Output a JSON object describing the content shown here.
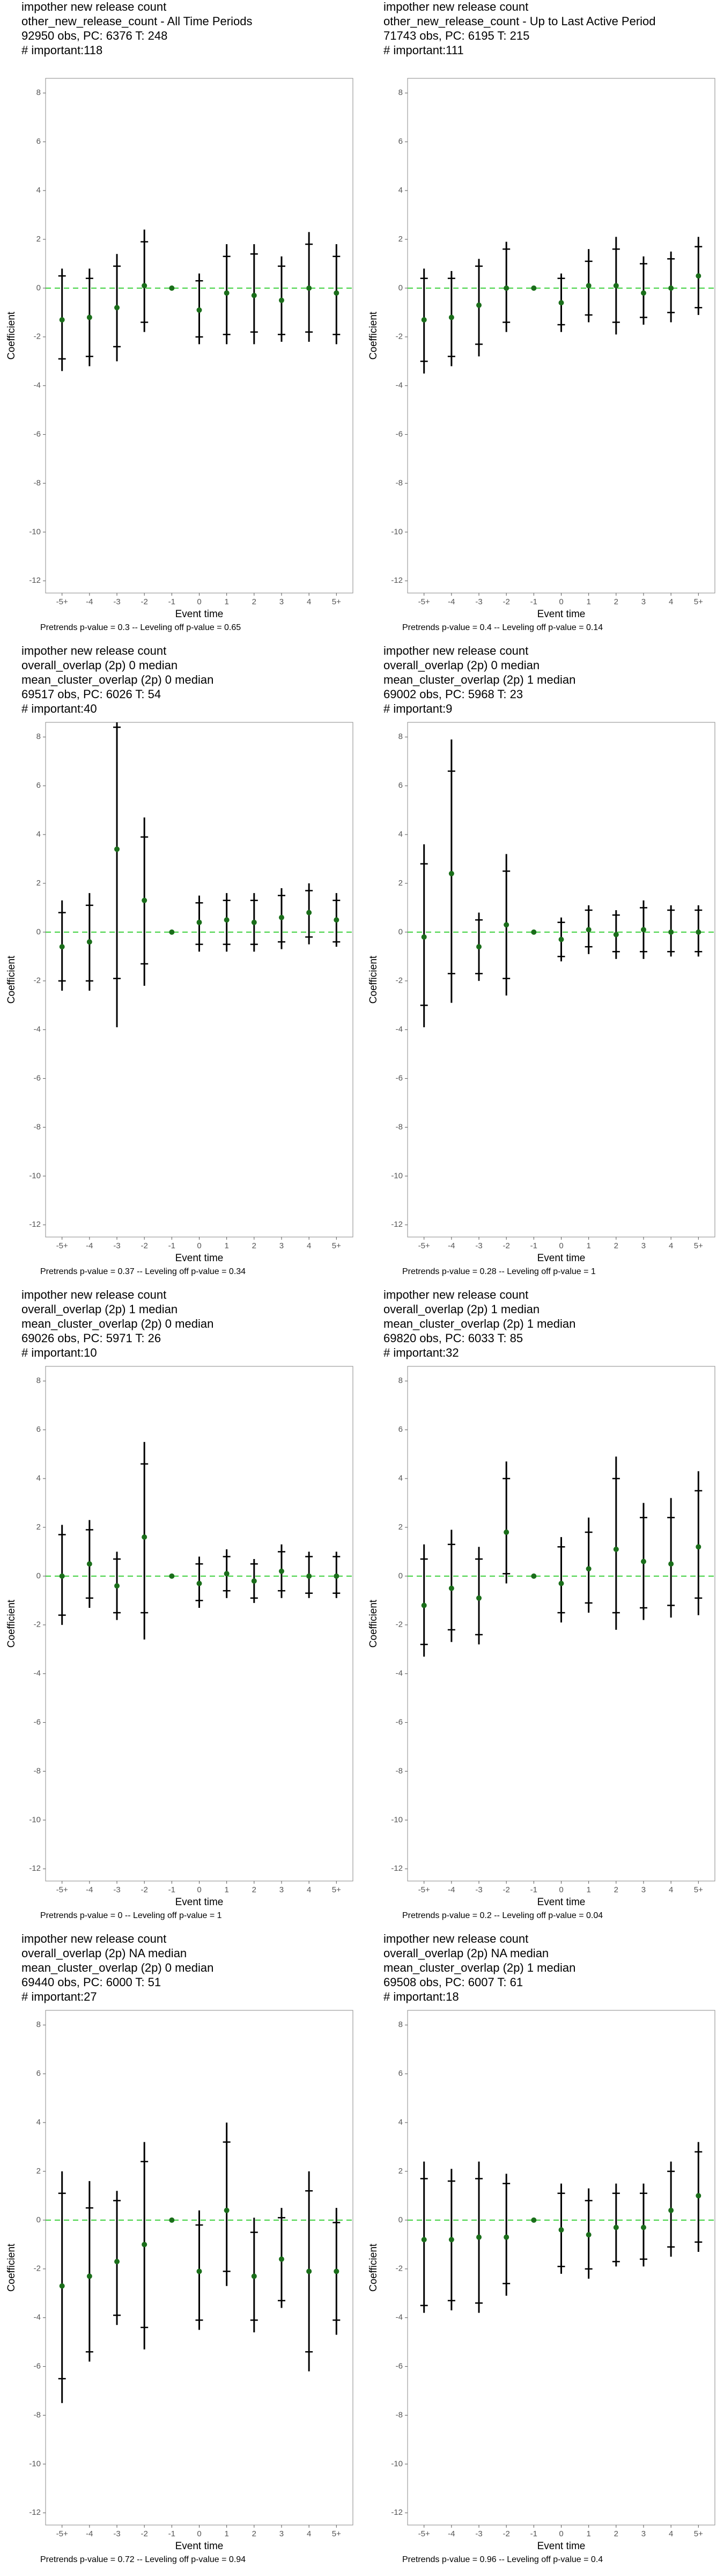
{
  "chart_data": [
    {
      "type": "errorbar",
      "title_lines": [
        " impother new release count",
        "other_new_release_count - All Time Periods",
        "92950 obs, PC: 6376 T: 248",
        "# important:118"
      ],
      "x_label": "Event time",
      "y_label": "Coefficient",
      "footer": "Pretrends p-value = 0.3 -- Leveling off p-value = 0.65",
      "categories": [
        "-5+",
        "-4",
        "-3",
        "-2",
        "-1",
        "0",
        "1",
        "2",
        "3",
        "4",
        "5+"
      ],
      "values": [
        -1.3,
        -1.2,
        -0.8,
        0.1,
        0,
        -0.9,
        -0.2,
        -0.3,
        -0.5,
        0.0,
        -0.2
      ],
      "outer_low": [
        -3.4,
        -3.2,
        -3.0,
        -1.8,
        null,
        -2.3,
        -2.3,
        -2.3,
        -2.2,
        -2.2,
        -2.3
      ],
      "outer_high": [
        0.8,
        0.8,
        1.4,
        2.4,
        null,
        0.6,
        1.8,
        1.8,
        1.3,
        2.3,
        1.8
      ],
      "inner_low": [
        -2.9,
        -2.8,
        -2.4,
        -1.4,
        null,
        -2.0,
        -1.9,
        -1.8,
        -1.9,
        -1.8,
        -1.9
      ],
      "inner_high": [
        0.5,
        0.4,
        0.9,
        1.9,
        null,
        0.3,
        1.3,
        1.4,
        0.9,
        1.8,
        1.3
      ],
      "ylim": [
        -12.5,
        8.6
      ],
      "yticks": [
        -12,
        -10,
        -8,
        -6,
        -4,
        -2,
        0,
        2,
        4,
        6,
        8
      ],
      "color": "#1a6e1a",
      "zero_line_color": "#3fd13f"
    },
    {
      "type": "errorbar",
      "title_lines": [
        " impother new release count",
        "other_new_release_count - Up to Last Active Period",
        "71743 obs, PC: 6195 T: 215",
        "# important:111"
      ],
      "x_label": "Event time",
      "y_label": "Coefficient",
      "footer": "Pretrends p-value = 0.4 -- Leveling off p-value = 0.14",
      "categories": [
        "-5+",
        "-4",
        "-3",
        "-2",
        "-1",
        "0",
        "1",
        "2",
        "3",
        "4",
        "5+"
      ],
      "values": [
        -1.3,
        -1.2,
        -0.7,
        0.0,
        0,
        -0.6,
        0.1,
        0.1,
        -0.2,
        0.0,
        0.5
      ],
      "outer_low": [
        -3.5,
        -3.2,
        -2.8,
        -1.8,
        null,
        -1.8,
        -1.4,
        -1.9,
        -1.5,
        -1.4,
        -1.1
      ],
      "outer_high": [
        0.8,
        0.7,
        1.2,
        1.9,
        null,
        0.6,
        1.6,
        2.1,
        1.3,
        1.5,
        2.1
      ],
      "inner_low": [
        -3.0,
        -2.8,
        -2.3,
        -1.4,
        null,
        -1.5,
        -1.1,
        -1.4,
        -1.2,
        -1.0,
        -0.8
      ],
      "inner_high": [
        0.4,
        0.4,
        0.9,
        1.6,
        null,
        0.4,
        1.1,
        1.6,
        1.0,
        1.2,
        1.7
      ],
      "ylim": [
        -12.5,
        8.6
      ],
      "yticks": [
        -12,
        -10,
        -8,
        -6,
        -4,
        -2,
        0,
        2,
        4,
        6,
        8
      ],
      "color": "#1a6e1a",
      "zero_line_color": "#3fd13f"
    },
    {
      "type": "errorbar",
      "title_lines": [
        " impother new release count",
        "overall_overlap (2p) 0 median",
        "mean_cluster_overlap (2p) 0 median",
        "69517 obs, PC: 6026 T: 54",
        "# important:40"
      ],
      "x_label": "Event time",
      "y_label": "Coefficient",
      "footer": "Pretrends p-value = 0.37 -- Leveling off p-value = 0.34",
      "categories": [
        "-5+",
        "-4",
        "-3",
        "-2",
        "-1",
        "0",
        "1",
        "2",
        "3",
        "4",
        "5+"
      ],
      "values": [
        -0.6,
        -0.4,
        3.4,
        1.3,
        0,
        0.4,
        0.5,
        0.4,
        0.6,
        0.8,
        0.5
      ],
      "outer_low": [
        -2.4,
        -2.4,
        -3.9,
        -2.2,
        null,
        -0.8,
        -0.8,
        -0.8,
        -0.7,
        -0.5,
        -0.6
      ],
      "outer_high": [
        1.3,
        1.6,
        8.6,
        4.7,
        null,
        1.5,
        1.6,
        1.6,
        1.8,
        2.0,
        1.6
      ],
      "inner_low": [
        -2.0,
        -2.0,
        -1.9,
        -1.3,
        null,
        -0.5,
        -0.5,
        -0.5,
        -0.4,
        -0.2,
        -0.4
      ],
      "inner_high": [
        0.8,
        1.1,
        8.4,
        3.9,
        null,
        1.2,
        1.3,
        1.3,
        1.5,
        1.7,
        1.3
      ],
      "ylim": [
        -12.5,
        8.6
      ],
      "yticks": [
        -12,
        -10,
        -8,
        -6,
        -4,
        -2,
        0,
        2,
        4,
        6,
        8
      ],
      "color": "#1a6e1a",
      "zero_line_color": "#3fd13f"
    },
    {
      "type": "errorbar",
      "title_lines": [
        " impother new release count",
        "overall_overlap (2p) 0 median",
        "mean_cluster_overlap (2p) 1 median",
        "69002 obs, PC: 5968 T: 23",
        "# important:9"
      ],
      "x_label": "Event time",
      "y_label": "Coefficient",
      "footer": "Pretrends p-value = 0.28 -- Leveling off p-value = 1",
      "categories": [
        "-5+",
        "-4",
        "-3",
        "-2",
        "-1",
        "0",
        "1",
        "2",
        "3",
        "4",
        "5+"
      ],
      "values": [
        -0.2,
        2.4,
        -0.6,
        0.3,
        0,
        -0.3,
        0.1,
        -0.1,
        0.1,
        0.0,
        0.0
      ],
      "outer_low": [
        -3.9,
        -2.9,
        -2.0,
        -2.6,
        null,
        -1.2,
        -0.9,
        -1.1,
        -1.1,
        -1.0,
        -1.0
      ],
      "outer_high": [
        3.6,
        7.9,
        0.8,
        3.2,
        null,
        0.6,
        1.1,
        0.9,
        1.3,
        1.1,
        1.1
      ],
      "inner_low": [
        -3.0,
        -1.7,
        -1.7,
        -1.9,
        null,
        -1.0,
        -0.6,
        -0.8,
        -0.8,
        -0.8,
        -0.8
      ],
      "inner_high": [
        2.8,
        6.6,
        0.5,
        2.5,
        null,
        0.4,
        0.9,
        0.7,
        1.0,
        0.9,
        0.9
      ],
      "ylim": [
        -12.5,
        8.6
      ],
      "yticks": [
        -12,
        -10,
        -8,
        -6,
        -4,
        -2,
        0,
        2,
        4,
        6,
        8
      ],
      "color": "#1a6e1a",
      "zero_line_color": "#3fd13f"
    },
    {
      "type": "errorbar",
      "title_lines": [
        " impother new release count",
        "overall_overlap (2p) 1 median",
        "mean_cluster_overlap (2p) 0 median",
        "69026 obs, PC: 5971 T: 26",
        "# important:10"
      ],
      "x_label": "Event time",
      "y_label": "Coefficient",
      "footer": "Pretrends p-value = 0 -- Leveling off p-value = 1",
      "categories": [
        "-5+",
        "-4",
        "-3",
        "-2",
        "-1",
        "0",
        "1",
        "2",
        "3",
        "4",
        "5+"
      ],
      "values": [
        0.0,
        0.5,
        -0.4,
        1.6,
        0,
        -0.3,
        0.1,
        -0.2,
        0.2,
        0.0,
        0.0
      ],
      "outer_low": [
        -2.0,
        -1.3,
        -1.8,
        -2.6,
        null,
        -1.3,
        -0.9,
        -1.1,
        -0.9,
        -0.9,
        -0.9
      ],
      "outer_high": [
        2.1,
        2.3,
        1.0,
        5.5,
        null,
        0.8,
        1.1,
        0.7,
        1.3,
        1.0,
        1.0
      ],
      "inner_low": [
        -1.6,
        -0.9,
        -1.5,
        -1.5,
        null,
        -1.0,
        -0.6,
        -0.9,
        -0.6,
        -0.7,
        -0.7
      ],
      "inner_high": [
        1.7,
        1.9,
        0.7,
        4.6,
        null,
        0.5,
        0.8,
        0.5,
        1.0,
        0.8,
        0.8
      ],
      "ylim": [
        -12.5,
        8.6
      ],
      "yticks": [
        -12,
        -10,
        -8,
        -6,
        -4,
        -2,
        0,
        2,
        4,
        6,
        8
      ],
      "color": "#1a6e1a",
      "zero_line_color": "#3fd13f"
    },
    {
      "type": "errorbar",
      "title_lines": [
        " impother new release count",
        "overall_overlap (2p) 1 median",
        "mean_cluster_overlap (2p) 1 median",
        "69820 obs, PC: 6033 T: 85",
        "# important:32"
      ],
      "x_label": "Event time",
      "y_label": "Coefficient",
      "footer": "Pretrends p-value = 0.2 -- Leveling off p-value = 0.04",
      "categories": [
        "-5+",
        "-4",
        "-3",
        "-2",
        "-1",
        "0",
        "1",
        "2",
        "3",
        "4",
        "5+"
      ],
      "values": [
        -1.2,
        -0.5,
        -0.9,
        1.8,
        0,
        -0.3,
        0.3,
        1.1,
        0.6,
        0.5,
        1.2
      ],
      "outer_low": [
        -3.3,
        -2.7,
        -2.8,
        -0.3,
        null,
        -1.9,
        -1.5,
        -2.2,
        -1.8,
        -1.7,
        -1.6
      ],
      "outer_high": [
        1.3,
        1.9,
        1.2,
        4.7,
        null,
        1.6,
        2.4,
        4.9,
        3.0,
        3.2,
        4.3
      ],
      "inner_low": [
        -2.8,
        -2.2,
        -2.4,
        0.1,
        null,
        -1.5,
        -1.1,
        -1.5,
        -1.3,
        -1.2,
        -0.9
      ],
      "inner_high": [
        0.7,
        1.3,
        0.7,
        4.0,
        null,
        1.2,
        1.8,
        4.0,
        2.4,
        2.4,
        3.5
      ],
      "ylim": [
        -12.5,
        8.6
      ],
      "yticks": [
        -12,
        -10,
        -8,
        -6,
        -4,
        -2,
        0,
        2,
        4,
        6,
        8
      ],
      "color": "#1a6e1a",
      "zero_line_color": "#3fd13f"
    },
    {
      "type": "errorbar",
      "title_lines": [
        " impother new release count",
        "overall_overlap (2p) NA median",
        "mean_cluster_overlap (2p) 0 median",
        "69440 obs, PC: 6000 T: 51",
        "# important:27"
      ],
      "x_label": "Event time",
      "y_label": "Coefficient",
      "footer": "Pretrends p-value = 0.72 -- Leveling off p-value = 0.94",
      "categories": [
        "-5+",
        "-4",
        "-3",
        "-2",
        "-1",
        "0",
        "1",
        "2",
        "3",
        "4",
        "5+"
      ],
      "values": [
        -2.7,
        -2.3,
        -1.7,
        -1.0,
        0,
        -2.1,
        0.4,
        -2.3,
        -1.6,
        -2.1,
        -2.1
      ],
      "outer_low": [
        -7.5,
        -5.8,
        -4.3,
        -5.3,
        null,
        -4.5,
        -2.7,
        -4.6,
        -3.6,
        -6.2,
        -4.7
      ],
      "outer_high": [
        2.0,
        1.6,
        1.2,
        3.2,
        null,
        0.4,
        4.0,
        0.1,
        0.5,
        2.0,
        0.5
      ],
      "inner_low": [
        -6.5,
        -5.4,
        -3.9,
        -4.4,
        null,
        -4.1,
        -2.1,
        -4.1,
        -3.3,
        -5.4,
        -4.1
      ],
      "inner_high": [
        1.1,
        0.5,
        0.8,
        2.4,
        null,
        -0.2,
        3.2,
        -0.5,
        0.1,
        1.2,
        -0.1
      ],
      "ylim": [
        -12.5,
        8.6
      ],
      "yticks": [
        -12,
        -10,
        -8,
        -6,
        -4,
        -2,
        0,
        2,
        4,
        6,
        8
      ],
      "color": "#1a6e1a",
      "zero_line_color": "#3fd13f"
    },
    {
      "type": "errorbar",
      "title_lines": [
        " impother new release count",
        "overall_overlap (2p) NA median",
        "mean_cluster_overlap (2p) 1 median",
        "69508 obs, PC: 6007 T: 61",
        "# important:18"
      ],
      "x_label": "Event time",
      "y_label": "Coefficient",
      "footer": "Pretrends p-value = 0.96 -- Leveling off p-value = 0.4",
      "categories": [
        "-5+",
        "-4",
        "-3",
        "-2",
        "-1",
        "0",
        "1",
        "2",
        "3",
        "4",
        "5+"
      ],
      "values": [
        -0.8,
        -0.8,
        -0.7,
        -0.7,
        0,
        -0.4,
        -0.6,
        -0.3,
        -0.3,
        0.4,
        1.0
      ],
      "outer_low": [
        -3.8,
        -3.7,
        -3.8,
        -3.1,
        null,
        -2.2,
        -2.4,
        -1.9,
        -1.9,
        -1.5,
        -1.3
      ],
      "outer_high": [
        2.4,
        2.1,
        2.4,
        1.9,
        null,
        1.5,
        1.3,
        1.5,
        1.5,
        2.4,
        3.2
      ],
      "inner_low": [
        -3.5,
        -3.3,
        -3.4,
        -2.6,
        null,
        -1.9,
        -2.0,
        -1.7,
        -1.6,
        -1.1,
        -0.9
      ],
      "inner_high": [
        1.7,
        1.6,
        1.7,
        1.5,
        null,
        1.1,
        0.8,
        1.1,
        1.1,
        2.0,
        2.8
      ],
      "ylim": [
        -12.5,
        8.6
      ],
      "yticks": [
        -12,
        -10,
        -8,
        -6,
        -4,
        -2,
        0,
        2,
        4,
        6,
        8
      ],
      "color": "#1a6e1a",
      "zero_line_color": "#3fd13f"
    }
  ]
}
